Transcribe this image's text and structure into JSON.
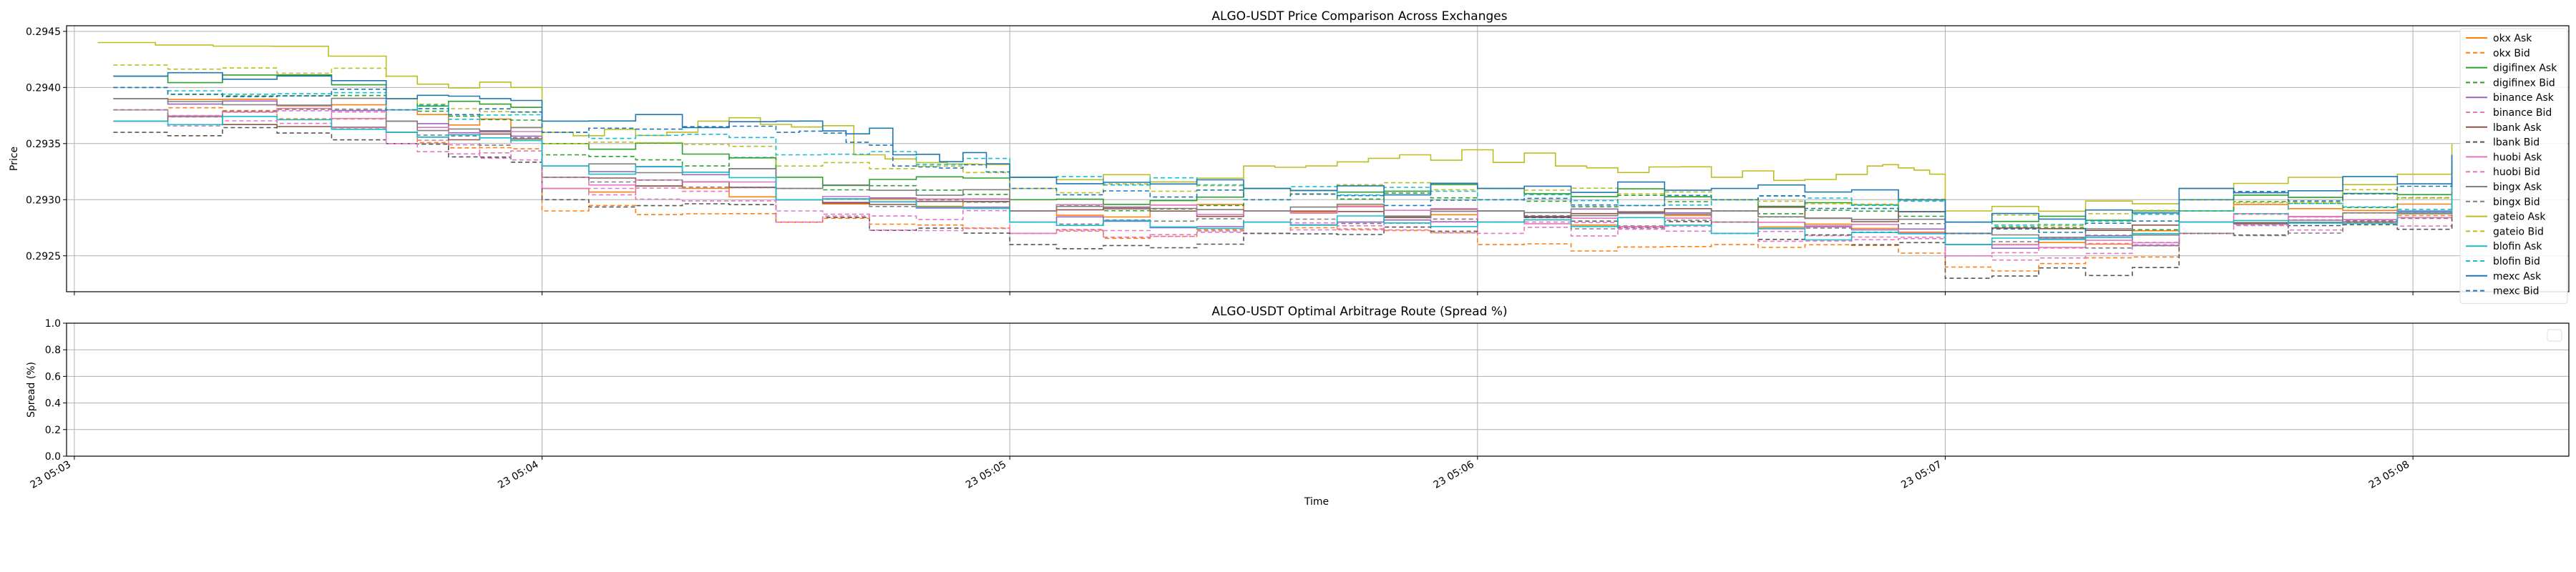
{
  "chart_data": [
    {
      "type": "line",
      "title": "ALGO-USDT Price Comparison Across Exchanges",
      "xlabel": "",
      "ylabel": "Price",
      "ylim": [
        0.29218,
        0.29455
      ],
      "yticks": [
        0.2925,
        0.293,
        0.2935,
        0.294,
        0.2945
      ],
      "ytick_labels": [
        "0.2925",
        "0.2930",
        "0.2935",
        "0.2940",
        "0.2945"
      ],
      "xlim": [
        "05:02:59",
        "05:08:20"
      ],
      "grid": true,
      "legend_position": "right",
      "series": [
        {
          "name": "okx Ask",
          "color": "#ff7f0e",
          "dash": "solid",
          "points": [
            [
              "05:03:05",
              0.2939
            ],
            [
              "05:03:40",
              0.2938
            ],
            [
              "05:04:00",
              0.2931
            ],
            [
              "05:04:30",
              0.293
            ],
            [
              "05:05:00",
              0.2929
            ],
            [
              "05:05:30",
              0.2929
            ],
            [
              "05:06:00",
              0.2928
            ],
            [
              "05:06:30",
              0.2928
            ],
            [
              "05:07:00",
              0.2926
            ],
            [
              "05:07:30",
              0.2929
            ],
            [
              "05:08:05",
              0.2931
            ]
          ]
        },
        {
          "name": "okx Bid",
          "color": "#ff7f0e",
          "dash": "dashed",
          "points": [
            [
              "05:03:05",
              0.2938
            ],
            [
              "05:03:40",
              0.2936
            ],
            [
              "05:04:00",
              0.2929
            ],
            [
              "05:04:30",
              0.2928
            ],
            [
              "05:05:00",
              0.2927
            ],
            [
              "05:05:30",
              0.2927
            ],
            [
              "05:06:00",
              0.2926
            ],
            [
              "05:06:30",
              0.2926
            ],
            [
              "05:07:00",
              0.2924
            ],
            [
              "05:07:30",
              0.2928
            ],
            [
              "05:08:05",
              0.293
            ]
          ]
        },
        {
          "name": "digifinex Ask",
          "color": "#2ca02c",
          "dash": "solid",
          "points": [
            [
              "05:03:05",
              0.2941
            ],
            [
              "05:03:40",
              0.2939
            ],
            [
              "05:04:00",
              0.2935
            ],
            [
              "05:04:30",
              0.2932
            ],
            [
              "05:05:00",
              0.293
            ],
            [
              "05:05:30",
              0.2931
            ],
            [
              "05:06:00",
              0.2931
            ],
            [
              "05:06:30",
              0.293
            ],
            [
              "05:07:00",
              0.2928
            ],
            [
              "05:07:30",
              0.293
            ],
            [
              "05:08:05",
              0.2934
            ]
          ]
        },
        {
          "name": "digifinex Bid",
          "color": "#2ca02c",
          "dash": "dashed",
          "points": [
            [
              "05:03:05",
              0.294
            ],
            [
              "05:03:40",
              0.2938
            ],
            [
              "05:04:00",
              0.2934
            ],
            [
              "05:04:30",
              0.2931
            ],
            [
              "05:05:00",
              0.2929
            ],
            [
              "05:05:30",
              0.293
            ],
            [
              "05:06:00",
              0.293
            ],
            [
              "05:06:30",
              0.2929
            ],
            [
              "05:07:00",
              0.2927
            ],
            [
              "05:07:30",
              0.2929
            ],
            [
              "05:08:05",
              0.2933
            ]
          ]
        },
        {
          "name": "binance Ask",
          "color": "#9467bd",
          "dash": "solid",
          "points": [
            [
              "05:03:05",
              0.2939
            ],
            [
              "05:03:40",
              0.2937
            ],
            [
              "05:04:00",
              0.2933
            ],
            [
              "05:04:30",
              0.293
            ],
            [
              "05:05:00",
              0.2928
            ],
            [
              "05:05:30",
              0.2928
            ],
            [
              "05:06:00",
              0.2929
            ],
            [
              "05:06:30",
              0.2928
            ],
            [
              "05:07:00",
              0.2926
            ],
            [
              "05:07:30",
              0.2928
            ],
            [
              "05:08:05",
              0.2931
            ]
          ]
        },
        {
          "name": "binance Bid",
          "color": "#e377c2",
          "dash": "dashed",
          "points": [
            [
              "05:03:05",
              0.2938
            ],
            [
              "05:03:40",
              0.2935
            ],
            [
              "05:04:00",
              0.2931
            ],
            [
              "05:04:30",
              0.2929
            ],
            [
              "05:05:00",
              0.2927
            ],
            [
              "05:05:30",
              0.2927
            ],
            [
              "05:06:00",
              0.2928
            ],
            [
              "05:06:30",
              0.2927
            ],
            [
              "05:07:00",
              0.2925
            ],
            [
              "05:07:30",
              0.2927
            ],
            [
              "05:08:05",
              0.293
            ]
          ]
        },
        {
          "name": "lbank Ask",
          "color": "#8c564b",
          "dash": "solid",
          "points": [
            [
              "05:03:05",
              0.2937
            ],
            [
              "05:03:40",
              0.2936
            ],
            [
              "05:04:00",
              0.2932
            ],
            [
              "05:04:30",
              0.293
            ],
            [
              "05:05:00",
              0.2929
            ],
            [
              "05:05:30",
              0.2929
            ],
            [
              "05:06:00",
              0.2929
            ],
            [
              "05:06:30",
              0.2929
            ],
            [
              "05:07:00",
              0.2927
            ],
            [
              "05:07:30",
              0.2928
            ],
            [
              "05:08:05",
              0.2931
            ]
          ]
        },
        {
          "name": "lbank Bid",
          "color": "#555555",
          "dash": "dashed",
          "points": [
            [
              "05:03:05",
              0.2936
            ],
            [
              "05:03:40",
              0.2935
            ],
            [
              "05:04:00",
              0.293
            ],
            [
              "05:04:30",
              0.2928
            ],
            [
              "05:05:00",
              0.2926
            ],
            [
              "05:05:30",
              0.2927
            ],
            [
              "05:06:00",
              0.2928
            ],
            [
              "05:06:30",
              0.2927
            ],
            [
              "05:07:00",
              0.2923
            ],
            [
              "05:07:30",
              0.2927
            ],
            [
              "05:08:05",
              0.293
            ]
          ]
        },
        {
          "name": "huobi Ask",
          "color": "#e377c2",
          "dash": "solid",
          "points": [
            [
              "05:03:05",
              0.2938
            ],
            [
              "05:03:40",
              0.2937
            ],
            [
              "05:04:00",
              0.2932
            ],
            [
              "05:04:30",
              0.293
            ],
            [
              "05:05:00",
              0.2929
            ],
            [
              "05:05:30",
              0.2929
            ],
            [
              "05:06:00",
              0.2928
            ],
            [
              "05:06:30",
              0.2928
            ],
            [
              "05:07:00",
              0.2926
            ],
            [
              "05:07:30",
              0.2928
            ],
            [
              "05:08:05",
              0.2931
            ]
          ]
        },
        {
          "name": "huobi Bid",
          "color": "#e377c2",
          "dash": "dashed",
          "points": [
            [
              "05:03:05",
              0.2937
            ],
            [
              "05:03:40",
              0.2935
            ],
            [
              "05:04:00",
              0.2931
            ],
            [
              "05:04:30",
              0.2928
            ],
            [
              "05:05:00",
              0.2927
            ],
            [
              "05:05:30",
              0.2928
            ],
            [
              "05:06:00",
              0.2927
            ],
            [
              "05:06:30",
              0.2927
            ],
            [
              "05:07:00",
              0.2925
            ],
            [
              "05:07:30",
              0.2928
            ],
            [
              "05:08:05",
              0.293
            ]
          ]
        },
        {
          "name": "bingx Ask",
          "color": "#7f7f7f",
          "dash": "solid",
          "points": [
            [
              "05:03:05",
              0.2939
            ],
            [
              "05:03:40",
              0.2937
            ],
            [
              "05:04:00",
              0.2933
            ],
            [
              "05:04:30",
              0.2931
            ],
            [
              "05:05:00",
              0.2929
            ],
            [
              "05:05:30",
              0.2929
            ],
            [
              "05:06:00",
              0.2929
            ],
            [
              "05:06:30",
              0.2929
            ],
            [
              "05:07:00",
              0.2927
            ],
            [
              "05:07:30",
              0.2928
            ],
            [
              "05:08:05",
              0.2932
            ]
          ]
        },
        {
          "name": "bingx Bid",
          "color": "#7f7f7f",
          "dash": "dashed",
          "points": [
            [
              "05:03:05",
              0.2938
            ],
            [
              "05:03:40",
              0.2936
            ],
            [
              "05:04:00",
              0.2932
            ],
            [
              "05:04:30",
              0.293
            ],
            [
              "05:05:00",
              0.2928
            ],
            [
              "05:05:30",
              0.2928
            ],
            [
              "05:06:00",
              0.2928
            ],
            [
              "05:06:30",
              0.2928
            ],
            [
              "05:07:00",
              0.2926
            ],
            [
              "05:07:30",
              0.2927
            ],
            [
              "05:08:05",
              0.2931
            ]
          ]
        },
        {
          "name": "gateio Ask",
          "color": "#bcbd22",
          "dash": "solid",
          "points": [
            [
              "05:03:03",
              0.2944
            ],
            [
              "05:03:40",
              0.2941
            ],
            [
              "05:04:00",
              0.2936
            ],
            [
              "05:04:20",
              0.2937
            ],
            [
              "05:04:40",
              0.2934
            ],
            [
              "05:05:00",
              0.2932
            ],
            [
              "05:05:30",
              0.2933
            ],
            [
              "05:05:50",
              0.2934
            ],
            [
              "05:06:10",
              0.2933
            ],
            [
              "05:06:30",
              0.2932
            ],
            [
              "05:06:50",
              0.2933
            ],
            [
              "05:07:00",
              0.2929
            ],
            [
              "05:07:30",
              0.2931
            ],
            [
              "05:08:05",
              0.2935
            ]
          ]
        },
        {
          "name": "gateio Bid",
          "color": "#bcbd22",
          "dash": "dashed",
          "points": [
            [
              "05:03:05",
              0.2942
            ],
            [
              "05:03:40",
              0.2939
            ],
            [
              "05:04:00",
              0.2935
            ],
            [
              "05:04:30",
              0.2933
            ],
            [
              "05:05:00",
              0.2931
            ],
            [
              "05:05:30",
              0.2931
            ],
            [
              "05:06:00",
              0.2931
            ],
            [
              "05:06:30",
              0.293
            ],
            [
              "05:07:00",
              0.2928
            ],
            [
              "05:07:30",
              0.293
            ],
            [
              "05:08:05",
              0.2933
            ]
          ]
        },
        {
          "name": "blofin Ask",
          "color": "#17becf",
          "dash": "solid",
          "points": [
            [
              "05:03:05",
              0.2937
            ],
            [
              "05:03:40",
              0.2936
            ],
            [
              "05:04:00",
              0.2933
            ],
            [
              "05:04:30",
              0.293
            ],
            [
              "05:05:00",
              0.2928
            ],
            [
              "05:05:30",
              0.2928
            ],
            [
              "05:06:00",
              0.2928
            ],
            [
              "05:06:30",
              0.2927
            ],
            [
              "05:07:00",
              0.2926
            ],
            [
              "05:07:30",
              0.2928
            ],
            [
              "05:08:05",
              0.293
            ]
          ]
        },
        {
          "name": "blofin Bid",
          "color": "#17becf",
          "dash": "dashed",
          "points": [
            [
              "05:03:05",
              0.294
            ],
            [
              "05:03:40",
              0.2938
            ],
            [
              "05:04:00",
              0.2936
            ],
            [
              "05:04:30",
              0.2934
            ],
            [
              "05:05:00",
              0.2932
            ],
            [
              "05:05:30",
              0.2931
            ],
            [
              "05:06:00",
              0.293
            ],
            [
              "05:06:30",
              0.293
            ],
            [
              "05:07:00",
              0.2928
            ],
            [
              "05:07:30",
              0.2929
            ],
            [
              "05:08:05",
              0.2932
            ]
          ]
        },
        {
          "name": "mexc Ask",
          "color": "#1f77b4",
          "dash": "solid",
          "points": [
            [
              "05:03:05",
              0.2941
            ],
            [
              "05:03:40",
              0.2939
            ],
            [
              "05:04:00",
              0.2937
            ],
            [
              "05:04:30",
              0.2937
            ],
            [
              "05:04:45",
              0.2934
            ],
            [
              "05:05:00",
              0.2932
            ],
            [
              "05:05:30",
              0.2931
            ],
            [
              "05:06:00",
              0.2931
            ],
            [
              "05:06:30",
              0.2931
            ],
            [
              "05:07:00",
              0.2928
            ],
            [
              "05:07:30",
              0.2931
            ],
            [
              "05:08:05",
              0.2934
            ]
          ]
        },
        {
          "name": "mexc Bid",
          "color": "#1f77b4",
          "dash": "dashed",
          "points": [
            [
              "05:03:05",
              0.294
            ],
            [
              "05:03:40",
              0.2938
            ],
            [
              "05:04:00",
              0.2936
            ],
            [
              "05:04:30",
              0.2936
            ],
            [
              "05:04:45",
              0.2933
            ],
            [
              "05:05:00",
              0.2931
            ],
            [
              "05:05:30",
              0.293
            ],
            [
              "05:06:00",
              0.293
            ],
            [
              "05:06:30",
              0.293
            ],
            [
              "05:07:00",
              0.2927
            ],
            [
              "05:07:30",
              0.293
            ],
            [
              "05:08:05",
              0.2933
            ]
          ]
        }
      ]
    },
    {
      "type": "line",
      "title": "ALGO-USDT Optimal Arbitrage Route (Spread %)",
      "xlabel": "Time",
      "ylabel": "Spread (%)",
      "ylim": [
        0.0,
        1.0
      ],
      "yticks": [
        0.0,
        0.2,
        0.4,
        0.6,
        0.8,
        1.0
      ],
      "ytick_labels": [
        "0.0",
        "0.2",
        "0.4",
        "0.6",
        "0.8",
        "1.0"
      ],
      "xlim": [
        "05:02:59",
        "05:08:20"
      ],
      "xticks": [
        "05:03:00",
        "05:04:00",
        "05:05:00",
        "05:06:00",
        "05:07:00",
        "05:08:00"
      ],
      "xtick_labels": [
        "23 05:03",
        "23 05:04",
        "23 05:05",
        "23 05:06",
        "23 05:07",
        "23 05:08"
      ],
      "grid": true,
      "legend_position": "top-right",
      "series": []
    }
  ]
}
